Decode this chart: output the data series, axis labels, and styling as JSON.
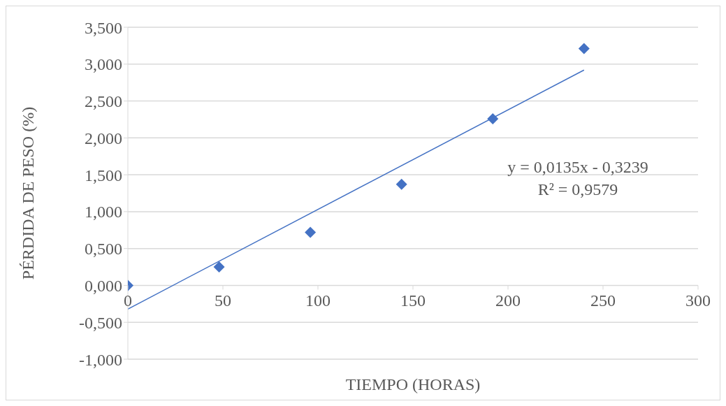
{
  "chart_data": {
    "type": "scatter",
    "xlabel": "TIEMPO (HORAS)",
    "ylabel": "PÉRDIDA DE PESO (%)",
    "x": [
      0,
      48,
      96,
      144,
      192,
      240
    ],
    "series": [
      {
        "color": "#4472c4",
        "marker": "diamond",
        "values": [
          0,
          0.25,
          0.72,
          1.37,
          2.26,
          3.21
        ]
      },
      {
        "type": "line",
        "color": "#4472c4",
        "marker": "none",
        "line_style": "solid",
        "x": [
          0,
          240
        ],
        "values": [
          -0.32,
          2.92
        ]
      }
    ],
    "xlim": [
      0,
      300
    ],
    "xticks": [
      0,
      50,
      100,
      150,
      200,
      250,
      300
    ],
    "ylim": [
      -1,
      3.5
    ],
    "yticks": [
      {
        "value": -1,
        "label": "-1,000"
      },
      {
        "value": -0.5,
        "label": "-0,500"
      },
      {
        "value": 0,
        "label": "0,000"
      },
      {
        "value": 0.5,
        "label": "0,500"
      },
      {
        "value": 1,
        "label": "1,000"
      },
      {
        "value": 1.5,
        "label": "1,500"
      },
      {
        "value": 2,
        "label": "2,000"
      },
      {
        "value": 2.5,
        "label": "2,500"
      },
      {
        "value": 3,
        "label": "3,000"
      },
      {
        "value": 3.5,
        "label": "3,500"
      }
    ],
    "grid": "y",
    "legend": false,
    "annotations": [
      "y = 0,0135x - 0,3239",
      "R² = 0,9579"
    ]
  }
}
